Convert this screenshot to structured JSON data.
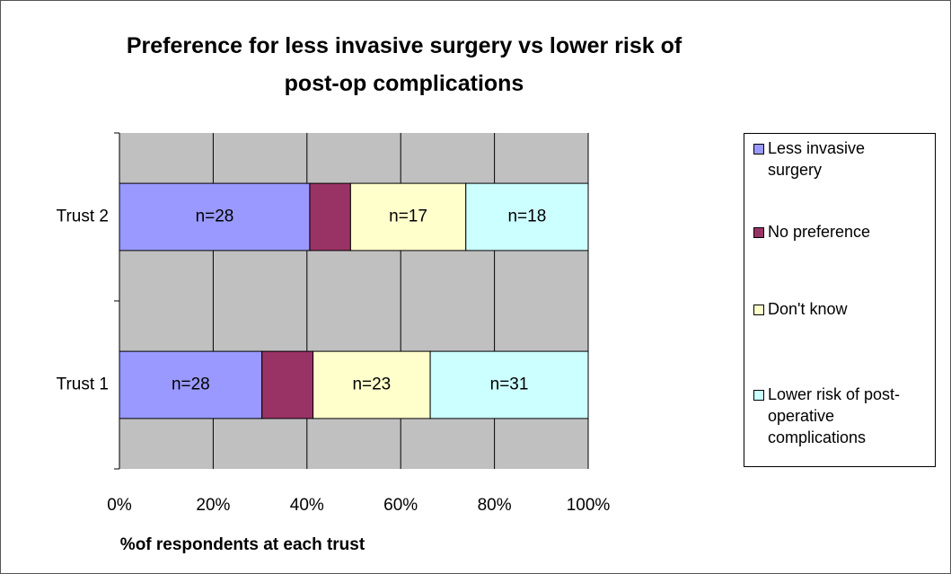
{
  "chart_data": {
    "type": "stacked_bar_horizontal",
    "title": "Preference for less invasive surgery vs lower risk of post-op complications",
    "x_label": "%of respondents at each trust",
    "categories": [
      "Trust 1",
      "Trust 2"
    ],
    "series": [
      {
        "name": "Less invasive surgery",
        "color": "#9999ff",
        "values": [
          30.4,
          40.6
        ],
        "bar_labels": [
          "n=28",
          "n=28"
        ]
      },
      {
        "name": "No preference",
        "color": "#993366",
        "values": [
          10.9,
          8.7
        ],
        "bar_labels": [
          null,
          null
        ]
      },
      {
        "name": "Don't know",
        "color": "#ffffcc",
        "values": [
          25.0,
          24.6
        ],
        "bar_labels": [
          "n=23",
          "n=17"
        ]
      },
      {
        "name": "Lower risk of post-operative complications",
        "color": "#ccffff",
        "values": [
          33.7,
          26.1
        ],
        "bar_labels": [
          "n=31",
          "n=18"
        ]
      }
    ],
    "xlim": [
      0,
      100
    ],
    "xticks": [
      {
        "value": 0,
        "label": "0%"
      },
      {
        "value": 20,
        "label": "20%"
      },
      {
        "value": 40,
        "label": "40%"
      },
      {
        "value": 60,
        "label": "60%"
      },
      {
        "value": 80,
        "label": "80%"
      },
      {
        "value": 100,
        "label": "100%"
      }
    ],
    "grid": true,
    "legend": "right",
    "plot_background": "#c0c0c0"
  }
}
